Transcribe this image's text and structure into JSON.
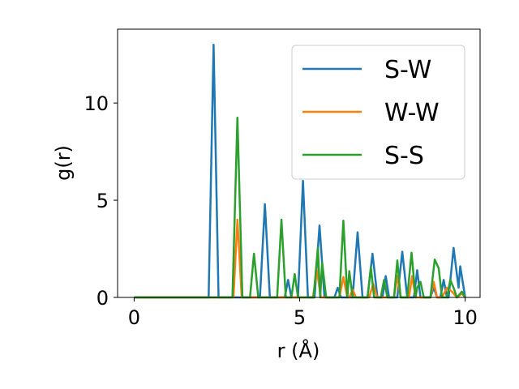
{
  "chart_data": {
    "type": "line",
    "xlabel": "r (Å)",
    "ylabel": "g(r)",
    "xlim": [
      -0.5,
      10.45
    ],
    "ylim": [
      0,
      13.8
    ],
    "xticks": [
      0,
      5,
      10
    ],
    "yticks": [
      0,
      5,
      10
    ],
    "grid": false,
    "legend_position": "top-right",
    "series": [
      {
        "name": "S-W",
        "color": "#1f77b4",
        "points": [
          [
            0,
            0
          ],
          [
            2.25,
            0
          ],
          [
            2.4,
            13.0
          ],
          [
            2.55,
            0
          ],
          [
            3.8,
            0
          ],
          [
            3.95,
            4.8
          ],
          [
            4.1,
            0
          ],
          [
            4.55,
            0
          ],
          [
            4.65,
            0.9
          ],
          [
            4.75,
            0
          ],
          [
            4.95,
            0
          ],
          [
            5.1,
            6.0
          ],
          [
            5.25,
            0
          ],
          [
            5.45,
            0
          ],
          [
            5.6,
            3.7
          ],
          [
            5.75,
            0
          ],
          [
            6.05,
            0
          ],
          [
            6.15,
            0.5
          ],
          [
            6.25,
            0
          ],
          [
            6.6,
            0
          ],
          [
            6.75,
            3.35
          ],
          [
            6.9,
            0
          ],
          [
            7.05,
            0
          ],
          [
            7.2,
            2.25
          ],
          [
            7.35,
            0
          ],
          [
            7.5,
            0
          ],
          [
            7.6,
            1.1
          ],
          [
            7.7,
            0
          ],
          [
            7.95,
            0
          ],
          [
            8.1,
            2.35
          ],
          [
            8.25,
            0
          ],
          [
            8.45,
            0
          ],
          [
            8.55,
            1.4
          ],
          [
            8.65,
            0
          ],
          [
            8.95,
            0
          ],
          [
            9.05,
            0.5
          ],
          [
            9.15,
            0
          ],
          [
            9.25,
            0
          ],
          [
            9.35,
            0.9
          ],
          [
            9.45,
            0
          ],
          [
            9.5,
            0
          ],
          [
            9.65,
            2.55
          ],
          [
            9.8,
            0.5
          ],
          [
            9.85,
            1.6
          ],
          [
            10.0,
            0
          ]
        ]
      },
      {
        "name": "W-W",
        "color": "#ff7f0e",
        "points": [
          [
            0,
            0
          ],
          [
            3.0,
            0
          ],
          [
            3.12,
            4.0
          ],
          [
            3.25,
            0
          ],
          [
            5.4,
            0
          ],
          [
            5.52,
            1.4
          ],
          [
            5.64,
            0
          ],
          [
            6.2,
            0
          ],
          [
            6.32,
            1.05
          ],
          [
            6.44,
            0
          ],
          [
            6.5,
            0
          ],
          [
            6.6,
            0.4
          ],
          [
            6.7,
            0
          ],
          [
            7.1,
            0
          ],
          [
            7.22,
            0.7
          ],
          [
            7.34,
            0
          ],
          [
            7.85,
            0
          ],
          [
            7.95,
            1.1
          ],
          [
            8.05,
            0
          ],
          [
            8.3,
            0
          ],
          [
            8.4,
            1.1
          ],
          [
            8.5,
            0
          ],
          [
            8.95,
            0
          ],
          [
            9.05,
            0.8
          ],
          [
            9.15,
            0
          ],
          [
            9.3,
            0
          ],
          [
            9.45,
            0.5
          ],
          [
            9.6,
            0.3
          ],
          [
            9.75,
            0
          ],
          [
            9.9,
            0.2
          ],
          [
            10.0,
            0
          ]
        ]
      },
      {
        "name": "S-S",
        "color": "#2ca02c",
        "points": [
          [
            0,
            0
          ],
          [
            2.97,
            0
          ],
          [
            3.12,
            9.25
          ],
          [
            3.27,
            0
          ],
          [
            3.5,
            0
          ],
          [
            3.62,
            2.25
          ],
          [
            3.75,
            0
          ],
          [
            4.32,
            0
          ],
          [
            4.45,
            4.0
          ],
          [
            4.58,
            0
          ],
          [
            4.75,
            0
          ],
          [
            4.85,
            1.2
          ],
          [
            4.95,
            0
          ],
          [
            5.42,
            0
          ],
          [
            5.55,
            2.55
          ],
          [
            5.62,
            0
          ],
          [
            5.68,
            1.8
          ],
          [
            5.8,
            0
          ],
          [
            6.2,
            0
          ],
          [
            6.32,
            3.95
          ],
          [
            6.44,
            0
          ],
          [
            6.5,
            1.35
          ],
          [
            6.6,
            0
          ],
          [
            7.05,
            0
          ],
          [
            7.15,
            1.55
          ],
          [
            7.25,
            0
          ],
          [
            7.45,
            0
          ],
          [
            7.55,
            0.9
          ],
          [
            7.65,
            0
          ],
          [
            7.85,
            0
          ],
          [
            7.95,
            1.9
          ],
          [
            8.05,
            0
          ],
          [
            8.25,
            0
          ],
          [
            8.38,
            2.3
          ],
          [
            8.5,
            0
          ],
          [
            8.55,
            0.5
          ],
          [
            8.65,
            0.8
          ],
          [
            8.75,
            0
          ],
          [
            8.95,
            0
          ],
          [
            9.08,
            1.95
          ],
          [
            9.2,
            1.5
          ],
          [
            9.3,
            0
          ],
          [
            9.45,
            0
          ],
          [
            9.55,
            0.9
          ],
          [
            9.65,
            0.5
          ],
          [
            9.75,
            0
          ],
          [
            9.9,
            0.3
          ],
          [
            10.0,
            0
          ]
        ]
      }
    ]
  }
}
